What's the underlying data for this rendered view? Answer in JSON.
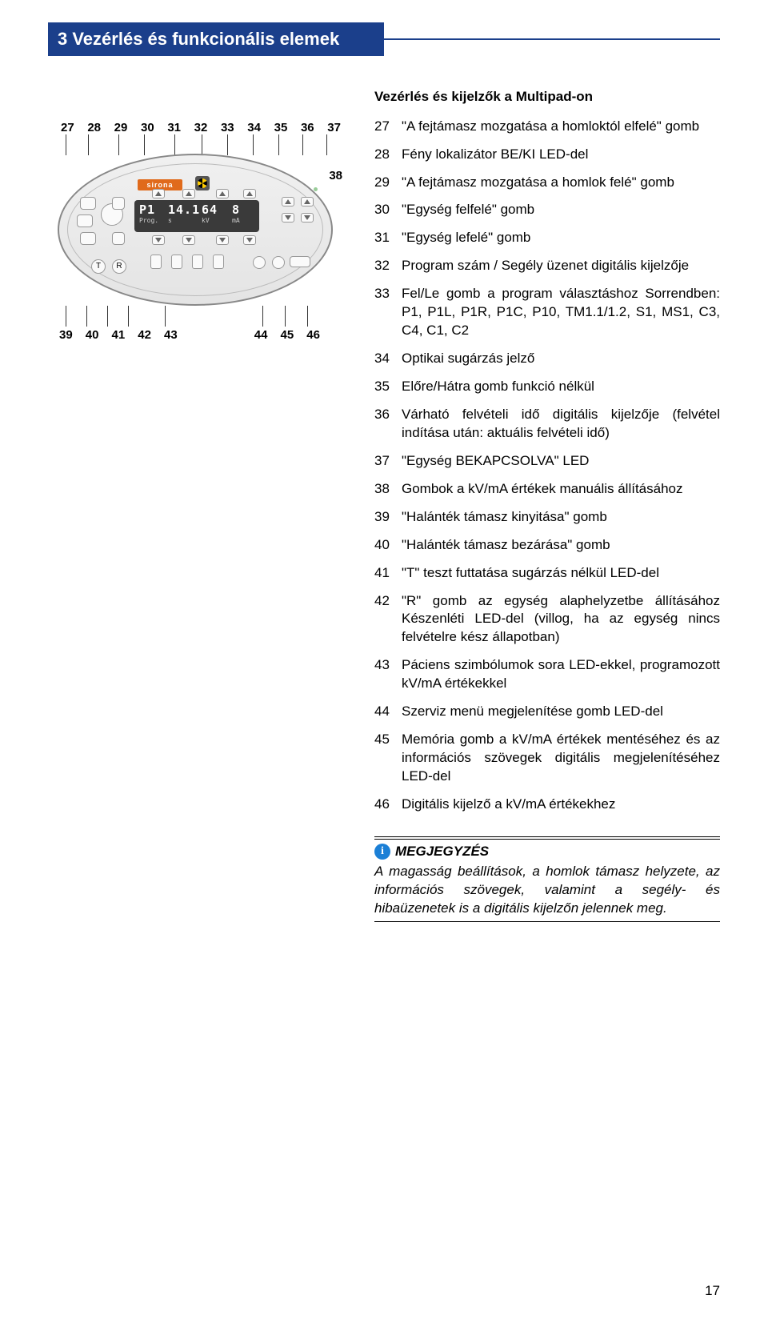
{
  "header": {
    "title": "3 Vezérlés és funkcionális elemek"
  },
  "diagram": {
    "callouts_top": [
      "27",
      "28",
      "29",
      "30",
      "31",
      "32",
      "33",
      "34",
      "35",
      "36",
      "37"
    ],
    "callout_side": "38",
    "callouts_bottom": [
      "39",
      "40",
      "41",
      "42",
      "43",
      "44",
      "45",
      "46"
    ],
    "brand": "sirona",
    "lcd": {
      "prog_val": "P1",
      "sec_val": "14.1",
      "kv_val": "64",
      "ma_val": "8",
      "prog_lbl": "Prog.",
      "sec_lbl": "s",
      "kv_lbl": "kV",
      "ma_lbl": "mA"
    }
  },
  "right": {
    "section_title": "Vezérlés és kijelzők a Multipad-on",
    "items": [
      {
        "num": "27",
        "txt": "\"A fejtámasz mozgatása a homloktól elfelé\" gomb"
      },
      {
        "num": "28",
        "txt": "Fény lokalizátor BE/KI LED-del"
      },
      {
        "num": "29",
        "txt": "\"A fejtámasz mozgatása a homlok felé\" gomb"
      },
      {
        "num": "30",
        "txt": "\"Egység felfelé\" gomb"
      },
      {
        "num": "31",
        "txt": "\"Egység lefelé\" gomb"
      },
      {
        "num": "32",
        "txt": "Program szám / Segély üzenet digitális kijelzője"
      },
      {
        "num": "33",
        "txt": "Fel/Le gomb a program választáshoz Sorrendben: P1, P1L, P1R, P1C, P10, TM1.1/1.2, S1, MS1, C3, C4, C1, C2"
      },
      {
        "num": "34",
        "txt": "Optikai sugárzás jelző"
      },
      {
        "num": "35",
        "txt": "Előre/Hátra gomb funkció nélkül"
      },
      {
        "num": "36",
        "txt": "Várható felvételi idő digitális kijelzője (felvétel indítása után: aktuális felvételi idő)"
      },
      {
        "num": "37",
        "txt": "\"Egység BEKAPCSOLVA\" LED"
      },
      {
        "num": "38",
        "txt": "Gombok a kV/mA értékek manuális állításához"
      },
      {
        "num": "39",
        "txt": "\"Halánték támasz kinyitása\" gomb"
      },
      {
        "num": "40",
        "txt": "\"Halánték támasz bezárása\" gomb"
      },
      {
        "num": "41",
        "txt": "\"T\" teszt futtatása sugárzás nélkül LED-del"
      },
      {
        "num": "42",
        "txt": "\"R\" gomb az egység alaphelyzetbe állításához Készenléti LED-del (villog, ha az egység nincs felvételre kész állapotban)"
      },
      {
        "num": "43",
        "txt": "Páciens szimbólumok sora LED-ekkel, programozott kV/mA értékekkel"
      },
      {
        "num": "44",
        "txt": "Szerviz menü megjelenítése gomb LED-del"
      },
      {
        "num": "45",
        "txt": "Memória gomb a kV/mA értékek mentéséhez és az információs szövegek digitális megjelenítéséhez LED-del"
      },
      {
        "num": "46",
        "txt": "Digitális kijelző a kV/mA értékekhez"
      }
    ]
  },
  "note": {
    "label": "MEGJEGYZÉS",
    "body": "A magasság beállítások, a homlok támasz helyzete, az információs szövegek, valamint a segély- és hibaüzenetek is a digitális kijelzőn jelennek meg."
  },
  "page_number": "17",
  "colors": {
    "brand_blue": "#1b3f8b",
    "info_blue": "#1b7fd6",
    "brand_orange": "#e06a1b"
  }
}
